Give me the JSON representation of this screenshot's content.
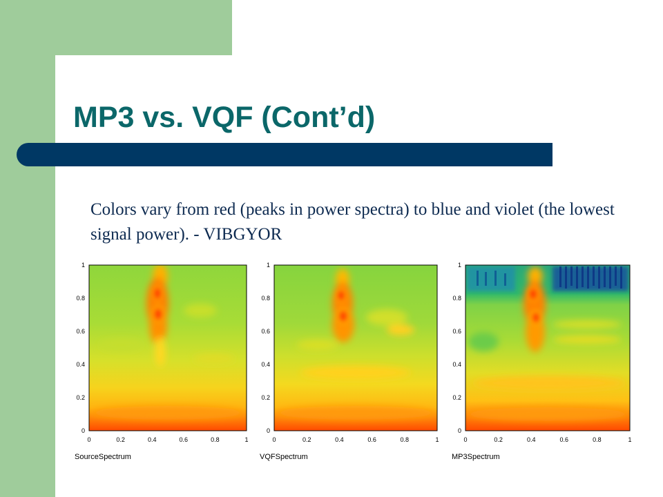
{
  "slide": {
    "title": "MP3 vs. VQF (Cont’d)",
    "body": "Colors vary from red (peaks in power spectra) to blue and violet (the lowest signal power). - VIBGYOR",
    "colors": {
      "sidebar": "#9fcc9b",
      "title": "#0b6769",
      "title_bar": "#003864",
      "body_text": "#0d2a50"
    }
  },
  "chart_data": [
    {
      "type": "heatmap",
      "title": "SourceSpectrum",
      "xlim": [
        0,
        1
      ],
      "ylim": [
        0,
        1
      ],
      "x_ticks": [
        "0",
        "0.2",
        "0.4",
        "0.6",
        "0.8",
        "1"
      ],
      "y_ticks": [
        "0",
        "0.2",
        "0.4",
        "0.6",
        "0.8",
        "1"
      ],
      "color_scale": [
        "violet",
        "blue",
        "green",
        "yellow",
        "orange",
        "red"
      ]
    },
    {
      "type": "heatmap",
      "title": "VQFSpectrum",
      "xlim": [
        0,
        1
      ],
      "ylim": [
        0,
        1
      ],
      "x_ticks": [
        "0",
        "0.2",
        "0.4",
        "0.6",
        "0.8",
        "1"
      ],
      "y_ticks": [
        "0",
        "0.2",
        "0.4",
        "0.6",
        "0.8",
        "1"
      ],
      "color_scale": [
        "violet",
        "blue",
        "green",
        "yellow",
        "orange",
        "red"
      ]
    },
    {
      "type": "heatmap",
      "title": "MP3Spectrum",
      "xlim": [
        0,
        1
      ],
      "ylim": [
        0,
        1
      ],
      "x_ticks": [
        "0",
        "0.2",
        "0.4",
        "0.6",
        "0.8",
        "1"
      ],
      "y_ticks": [
        "0",
        "0.2",
        "0.4",
        "0.6",
        "0.8",
        "1"
      ],
      "color_scale": [
        "violet",
        "blue",
        "green",
        "yellow",
        "orange",
        "red"
      ]
    }
  ]
}
